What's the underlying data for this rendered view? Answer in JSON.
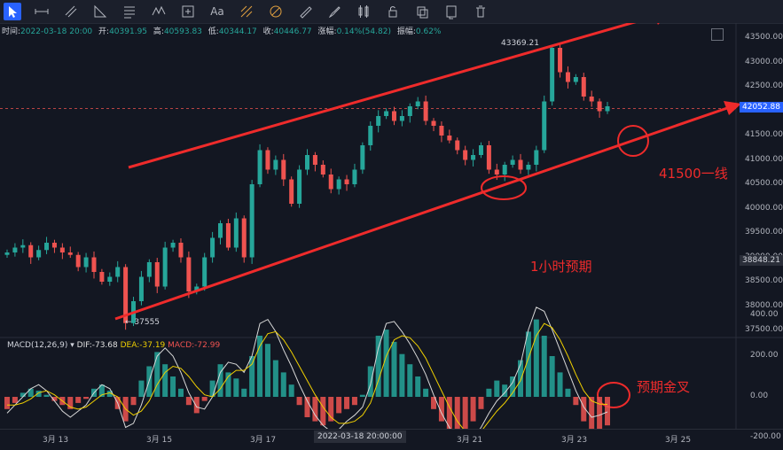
{
  "toolbar": {
    "tools": [
      "cursor-icon",
      "horizontal-line-icon",
      "parallel-channel-icon",
      "fib-retracement-icon",
      "text-lines-icon",
      "wave-pattern-icon",
      "measure-icon",
      "text-icon",
      "pattern-icon",
      "fib-fan-icon",
      "ruler-icon",
      "brush-icon",
      "candle-icon",
      "lock-icon",
      "copy-icon",
      "eye-icon",
      "trash-icon"
    ],
    "text_tool_label": "Aa"
  },
  "ohlc": {
    "time_label": "时间:",
    "time": "2022-03-18 20:00",
    "open_label": "开:",
    "open": "40391.95",
    "high_label": "高:",
    "high": "40593.83",
    "low_label": "低:",
    "low": "40344.17",
    "close_label": "收:",
    "close": "40446.77",
    "change_label": "涨幅:",
    "change": "0.14%(54.82)",
    "amplitude_label": "振幅:",
    "amplitude": "0.62%"
  },
  "price_axis": [
    "43500.00",
    "43000.00",
    "42500.00",
    "42000.00",
    "41500.00",
    "41000.00",
    "40500.00",
    "40000.00",
    "39500.00",
    "39000.00",
    "38500.00",
    "38000.00",
    "37500.00"
  ],
  "current_price": "42052.88",
  "crosshair_price": "38848.21",
  "high_marker": "43369.21",
  "low_marker": "← 37555",
  "macd": {
    "name": "MACD(12,26,9)",
    "dif": "DIF:-73.68",
    "dea": "DEA:-37.19",
    "macd": "MACD:-72.99",
    "axis": [
      "400.00",
      "200.00",
      "0.00",
      "-200.00"
    ]
  },
  "time_axis": [
    "3月 13",
    "3月 15",
    "3月 17",
    "3月 21",
    "3月 23",
    "3月 25"
  ],
  "crosshair_time": "2022-03-18 20:00:00",
  "annotations": {
    "level": "41500一线",
    "forecast": "1小时预期",
    "golden_cross": "预期金叉"
  },
  "colors": {
    "up": "#26a69a",
    "down": "#ef5350",
    "annotation": "#ef2b2b",
    "current_price_tag": "#2962ff",
    "dif": "#d8d8d8",
    "dea": "#f0d000",
    "background": "#131722"
  },
  "chart_data": {
    "type": "candlestick",
    "x_range": [
      "2022-03-12",
      "2022-03-25"
    ],
    "ylim": [
      37300,
      43700
    ],
    "close_series": [
      39100,
      39200,
      39250,
      39000,
      39150,
      39300,
      39200,
      39100,
      39050,
      38800,
      39000,
      38700,
      38500,
      38600,
      38800,
      37650,
      38100,
      38600,
      38900,
      38400,
      39200,
      39300,
      39000,
      38300,
      38400,
      39000,
      39400,
      39700,
      39200,
      39800,
      39000,
      40500,
      41200,
      40800,
      41000,
      40600,
      40100,
      40800,
      41100,
      40900,
      40700,
      40400,
      40600,
      40500,
      40800,
      41300,
      41700,
      41900,
      42000,
      41800,
      41900,
      42100,
      42200,
      41800,
      41700,
      41500,
      41400,
      41200,
      41000,
      41100,
      41300,
      40800,
      40700,
      40900,
      41000,
      40800,
      40900,
      41200,
      42200,
      43300,
      42800,
      42600,
      42700,
      42300,
      42200,
      42000,
      42100
    ],
    "macd_histogram": [
      -60,
      -30,
      20,
      40,
      30,
      10,
      -20,
      -40,
      -60,
      -30,
      -10,
      40,
      60,
      30,
      -60,
      -120,
      -40,
      80,
      150,
      220,
      160,
      100,
      40,
      -40,
      -80,
      -20,
      80,
      160,
      120,
      90,
      40,
      200,
      300,
      260,
      180,
      120,
      60,
      -40,
      -100,
      -120,
      -140,
      -120,
      -80,
      -60,
      -40,
      10,
      150,
      300,
      330,
      270,
      210,
      160,
      100,
      40,
      -60,
      -120,
      -160,
      -200,
      -180,
      -120,
      -60,
      40,
      80,
      60,
      100,
      180,
      320,
      380,
      300,
      200,
      120,
      40,
      -40,
      -120,
      -160,
      -180,
      -140
    ],
    "dif_line": [
      -80,
      -40,
      0,
      40,
      60,
      30,
      -20,
      -70,
      -100,
      -70,
      -40,
      20,
      60,
      40,
      -30,
      -150,
      -130,
      -40,
      80,
      200,
      240,
      200,
      120,
      20,
      -50,
      -60,
      0,
      120,
      170,
      160,
      120,
      200,
      360,
      380,
      320,
      230,
      150,
      60,
      -20,
      -90,
      -140,
      -170,
      -160,
      -120,
      -90,
      -50,
      60,
      240,
      360,
      370,
      320,
      260,
      190,
      110,
      10,
      -80,
      -150,
      -210,
      -230,
      -200,
      -150,
      -80,
      -20,
      20,
      70,
      160,
      330,
      440,
      420,
      330,
      230,
      130,
      30,
      -50,
      -100,
      -90,
      -74
    ],
    "dea_line": [
      -40,
      -40,
      -30,
      -10,
      20,
      30,
      10,
      -20,
      -50,
      -60,
      -50,
      -20,
      10,
      20,
      0,
      -60,
      -90,
      -70,
      -20,
      60,
      120,
      150,
      140,
      100,
      50,
      10,
      0,
      40,
      100,
      130,
      130,
      160,
      250,
      310,
      320,
      280,
      220,
      150,
      80,
      10,
      -50,
      -100,
      -130,
      -130,
      -120,
      -90,
      -30,
      80,
      200,
      280,
      300,
      290,
      250,
      190,
      110,
      30,
      -50,
      -120,
      -170,
      -190,
      -170,
      -120,
      -70,
      -30,
      20,
      80,
      190,
      300,
      360,
      340,
      280,
      200,
      110,
      30,
      -20,
      -35,
      -37
    ]
  }
}
